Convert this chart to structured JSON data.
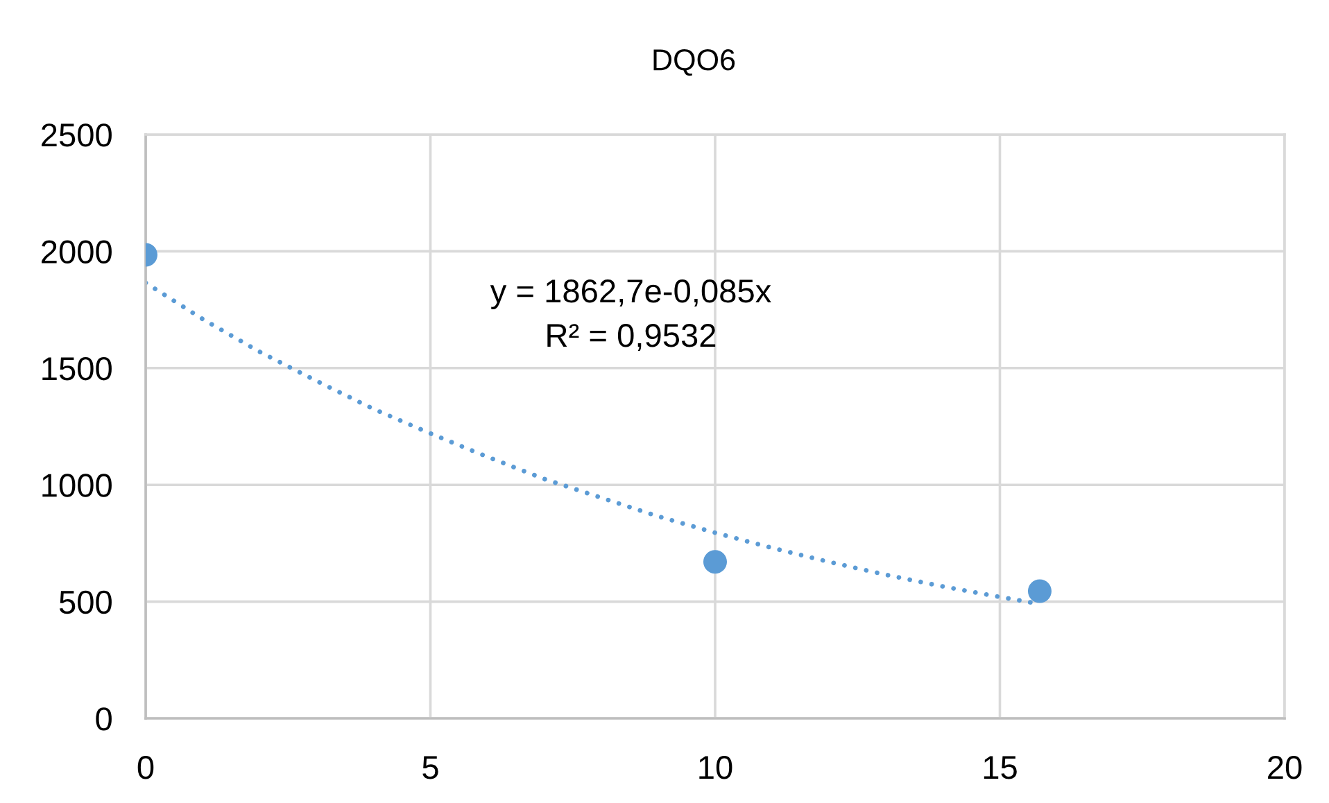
{
  "chart_data": {
    "type": "scatter",
    "title": "DQO6",
    "xlim": [
      0,
      20
    ],
    "xticks": [
      0,
      5,
      10,
      15,
      20
    ],
    "ylim": [
      0,
      2500
    ],
    "yticks": [
      0,
      500,
      1000,
      1500,
      2000,
      2500
    ],
    "grid": true,
    "annotations": [
      "y = 1862,7e-0,085x",
      "R² = 0,9532"
    ],
    "series": [
      {
        "color": "#5b9bd5",
        "marker": "circle",
        "x": [
          0,
          10,
          15.7
        ],
        "values": [
          1985,
          670,
          545
        ]
      },
      {
        "type": "line",
        "color": "#5b9bd5",
        "line_style": "dotted",
        "x": [
          0,
          1,
          2,
          3,
          4,
          5,
          6,
          7,
          8,
          9,
          10,
          11,
          12,
          13,
          14,
          15,
          15.7
        ],
        "values": [
          1865,
          1710,
          1570,
          1445,
          1325,
          1220,
          1120,
          1025,
          945,
          865,
          795,
          730,
          670,
          615,
          565,
          520,
          490
        ]
      }
    ]
  }
}
